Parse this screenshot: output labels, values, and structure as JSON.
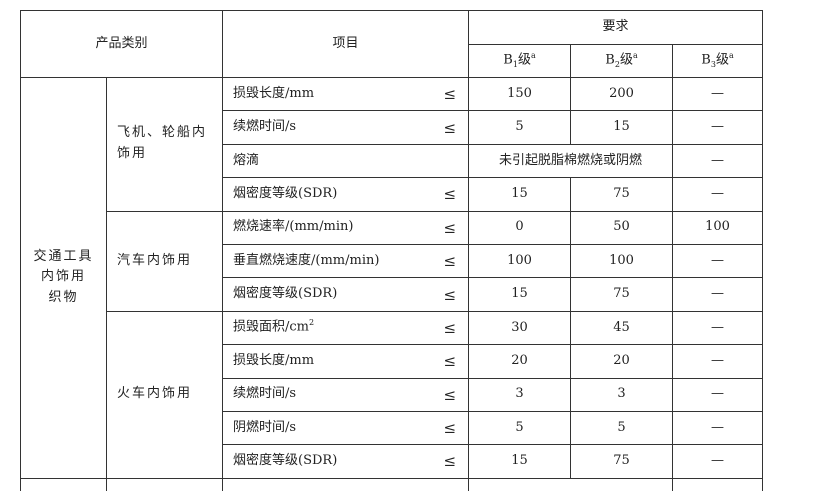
{
  "header": {
    "category": "产品类别",
    "item": "项目",
    "requirement": "要求",
    "grades": [
      {
        "letter": "B",
        "num": "1",
        "suffix": "级",
        "note": "a"
      },
      {
        "letter": "B",
        "num": "2",
        "suffix": "级",
        "note": "a"
      },
      {
        "letter": "B",
        "num": "3",
        "suffix": "级",
        "note": "a"
      }
    ]
  },
  "le": "≤",
  "category_main": [
    "交通工具",
    "内饰用",
    "织物"
  ],
  "groups": [
    {
      "name": "飞机、轮船内饰用",
      "rows": [
        {
          "item": "损毁长度/mm",
          "le": true,
          "b1": "150",
          "b2": "200",
          "b3": "—"
        },
        {
          "item": "续燃时间/s",
          "le": true,
          "b1": "5",
          "b2": "15",
          "b3": "—"
        },
        {
          "item": "熔滴",
          "le": false,
          "merged": "未引起脱脂棉燃烧或阴燃",
          "b3": "—"
        },
        {
          "item": "烟密度等级(SDR)",
          "le": true,
          "b1": "15",
          "b2": "75",
          "b3": "—"
        }
      ]
    },
    {
      "name": "汽车内饰用",
      "rows": [
        {
          "item": "燃烧速率/(mm/min)",
          "le": true,
          "b1": "0",
          "b2": "50",
          "b3": "100"
        },
        {
          "item": "垂直燃烧速度/(mm/min)",
          "le": true,
          "b1": "100",
          "b2": "100",
          "b3": "—"
        },
        {
          "item": "烟密度等级(SDR)",
          "le": true,
          "b1": "15",
          "b2": "75",
          "b3": "—"
        }
      ]
    },
    {
      "name": "火车内饰用",
      "rows": [
        {
          "item": "损毁面积/cm",
          "sup": "2",
          "le": true,
          "b1": "30",
          "b2": "45",
          "b3": "—"
        },
        {
          "item": "损毁长度/mm",
          "le": true,
          "b1": "20",
          "b2": "20",
          "b3": "—"
        },
        {
          "item": "续燃时间/s",
          "le": true,
          "b1": "3",
          "b2": "3",
          "b3": "—"
        },
        {
          "item": "阴燃时间/s",
          "le": true,
          "b1": "5",
          "b2": "5",
          "b3": "—"
        },
        {
          "item": "烟密度等级(SDR)",
          "le": true,
          "b1": "15",
          "b2": "75",
          "b3": "—"
        }
      ]
    }
  ]
}
